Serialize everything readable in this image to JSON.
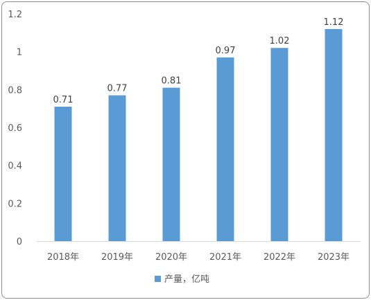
{
  "chart_data": {
    "type": "bar",
    "categories": [
      "2018年",
      "2019年",
      "2020年",
      "2021年",
      "2022年",
      "2023年"
    ],
    "series": [
      {
        "name": "产量，亿吨",
        "values": [
          0.71,
          0.77,
          0.81,
          0.97,
          1.02,
          1.12
        ],
        "color": "#5b9bd5"
      }
    ],
    "title": "",
    "xlabel": "",
    "ylabel": "",
    "ylim": [
      0,
      1.2
    ],
    "yticks": [
      "0",
      "0.2",
      "0.4",
      "0.6",
      "0.8",
      "1",
      "1.2"
    ],
    "grid": false,
    "legend": "bottom"
  }
}
